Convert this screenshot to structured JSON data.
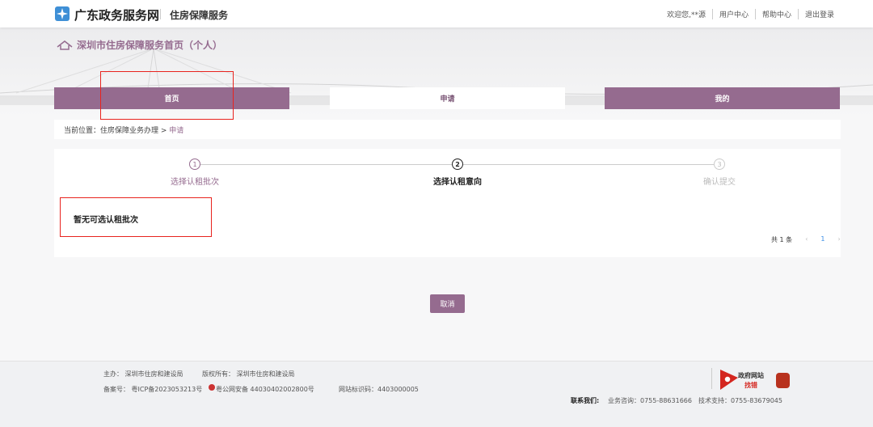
{
  "header": {
    "brand": "广东政务服务网",
    "sub": "住房保障服务",
    "links": [
      "欢迎您,**源",
      "用户中心",
      "帮助中心",
      "退出登录"
    ]
  },
  "page_title": "深圳市住房保障服务首页（个人）",
  "tabs": [
    {
      "label": "首页"
    },
    {
      "label": "申请"
    },
    {
      "label": "我的"
    }
  ],
  "breadcrumb": {
    "prefix": "当前位置：",
    "path": "住房保障业务办理",
    "arrow": " > ",
    "current": "申请"
  },
  "steps": [
    {
      "num": "1",
      "label": "选择认租批次",
      "state": "done"
    },
    {
      "num": "2",
      "label": "选择认租意向",
      "state": "active"
    },
    {
      "num": "3",
      "label": "确认提交",
      "state": "pending"
    }
  ],
  "empty_text": "暂无可选认租批次",
  "pagination": {
    "total": "共 1 条",
    "prev": "‹",
    "page": "1",
    "next": "›"
  },
  "cancel_label": "取消",
  "footer": {
    "host": "主办：  深圳市住房和建设局",
    "copyright": "版权所有：  深圳市住房和建设局",
    "icp": "备案号：  粤ICP备2023053213号",
    "police": "粤公网安备 44030402002800号",
    "site_id": "网站标识码：4403000005",
    "badge_line1": "政府网站",
    "badge_line2": "找错",
    "contact_label": "联系我们:",
    "consult": "业务咨询：0755-88631666",
    "support": "技术支持：0755-83679045"
  },
  "colors": {
    "accent": "#956b8f",
    "highlight": "#e8231e",
    "link": "#3a8ee6"
  }
}
